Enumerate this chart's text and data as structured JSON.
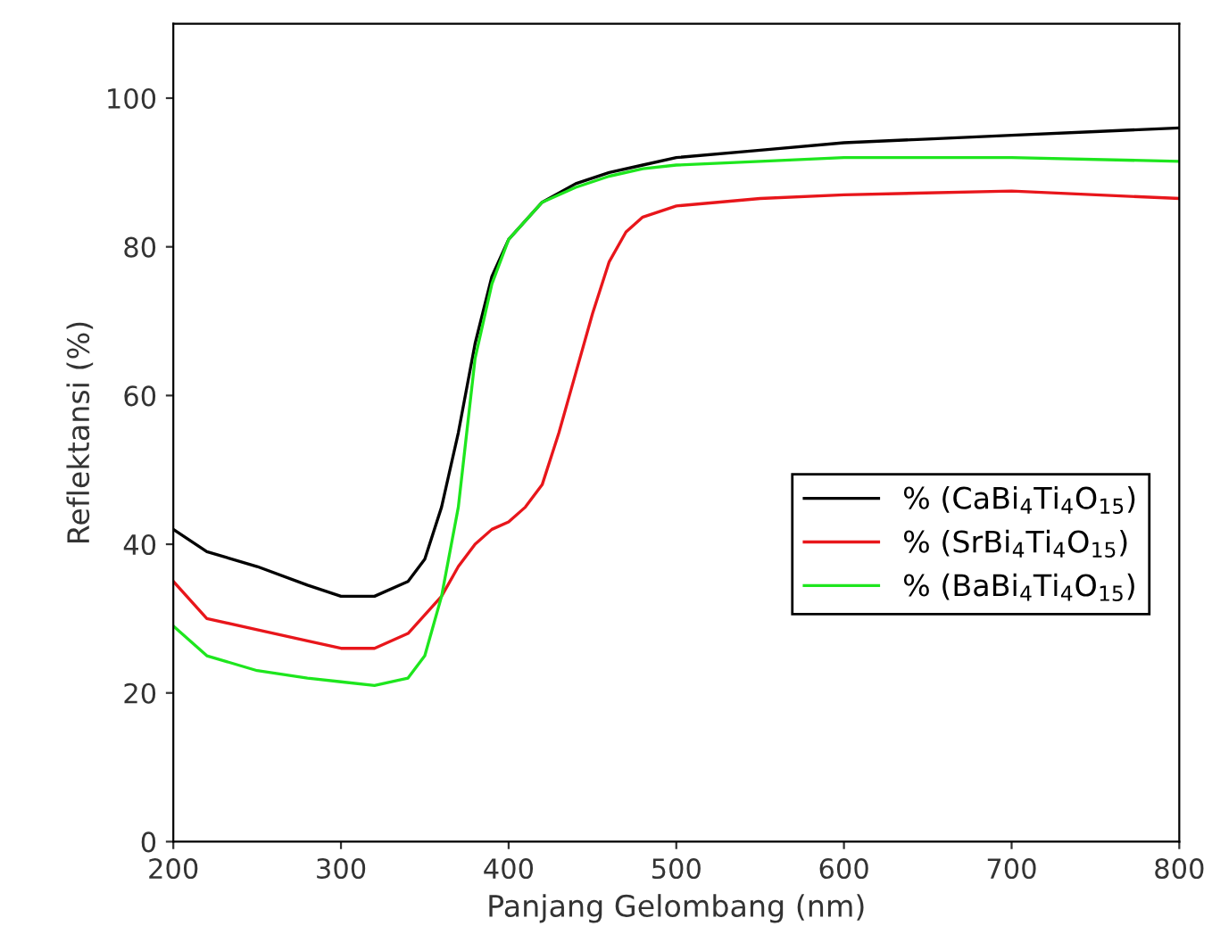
{
  "chart_data": {
    "type": "line",
    "xlabel": "Panjang Gelombang (nm)",
    "ylabel": "Reflektansi (%)",
    "xlim": [
      200,
      800
    ],
    "xticks": [
      200,
      300,
      400,
      500,
      600,
      700,
      800
    ],
    "ylim": [
      0,
      110
    ],
    "yticks": [
      0,
      20,
      40,
      60,
      80,
      100
    ],
    "grid": false,
    "legend": "bottom right",
    "marker": "none",
    "line_style": "solid",
    "series": [
      {
        "name": "% (CaBi$_{4}$Ti$_{4}$O$_{15}$)",
        "color": "#000000",
        "x": [
          200,
          220,
          250,
          280,
          300,
          320,
          340,
          350,
          360,
          370,
          380,
          390,
          400,
          420,
          440,
          460,
          480,
          500,
          550,
          600,
          650,
          700,
          750,
          800
        ],
        "values": [
          42,
          39,
          37,
          34.5,
          33,
          33,
          35,
          38,
          45,
          55,
          67,
          76,
          81,
          86,
          88.5,
          90,
          91,
          92,
          93,
          94,
          94.5,
          95,
          95.5,
          96
        ]
      },
      {
        "name": "% (SrBi$_{4}$Ti$_{4}$O$_{15}$)",
        "color": "#e8161b",
        "x": [
          200,
          220,
          250,
          280,
          300,
          320,
          340,
          360,
          370,
          380,
          390,
          400,
          410,
          420,
          430,
          440,
          450,
          460,
          470,
          480,
          500,
          550,
          600,
          700,
          800
        ],
        "values": [
          35,
          30,
          28.5,
          27,
          26,
          26,
          28,
          33,
          37,
          40,
          42,
          43,
          45,
          48,
          55,
          63,
          71,
          78,
          82,
          84,
          85.5,
          86.5,
          87,
          87.5,
          86.5
        ]
      },
      {
        "name": "% (BaBi$_{4}$Ti$_{4}$O$_{15}$)",
        "color": "#1ee61e",
        "x": [
          200,
          220,
          250,
          280,
          300,
          320,
          340,
          350,
          360,
          370,
          375,
          380,
          390,
          400,
          420,
          440,
          460,
          480,
          500,
          550,
          600,
          700,
          800
        ],
        "values": [
          29,
          25,
          23,
          22,
          21.5,
          21,
          22,
          25,
          33,
          45,
          55,
          65,
          75,
          81,
          86,
          88,
          89.5,
          90.5,
          91,
          91.5,
          92,
          92,
          91.5
        ]
      }
    ]
  }
}
